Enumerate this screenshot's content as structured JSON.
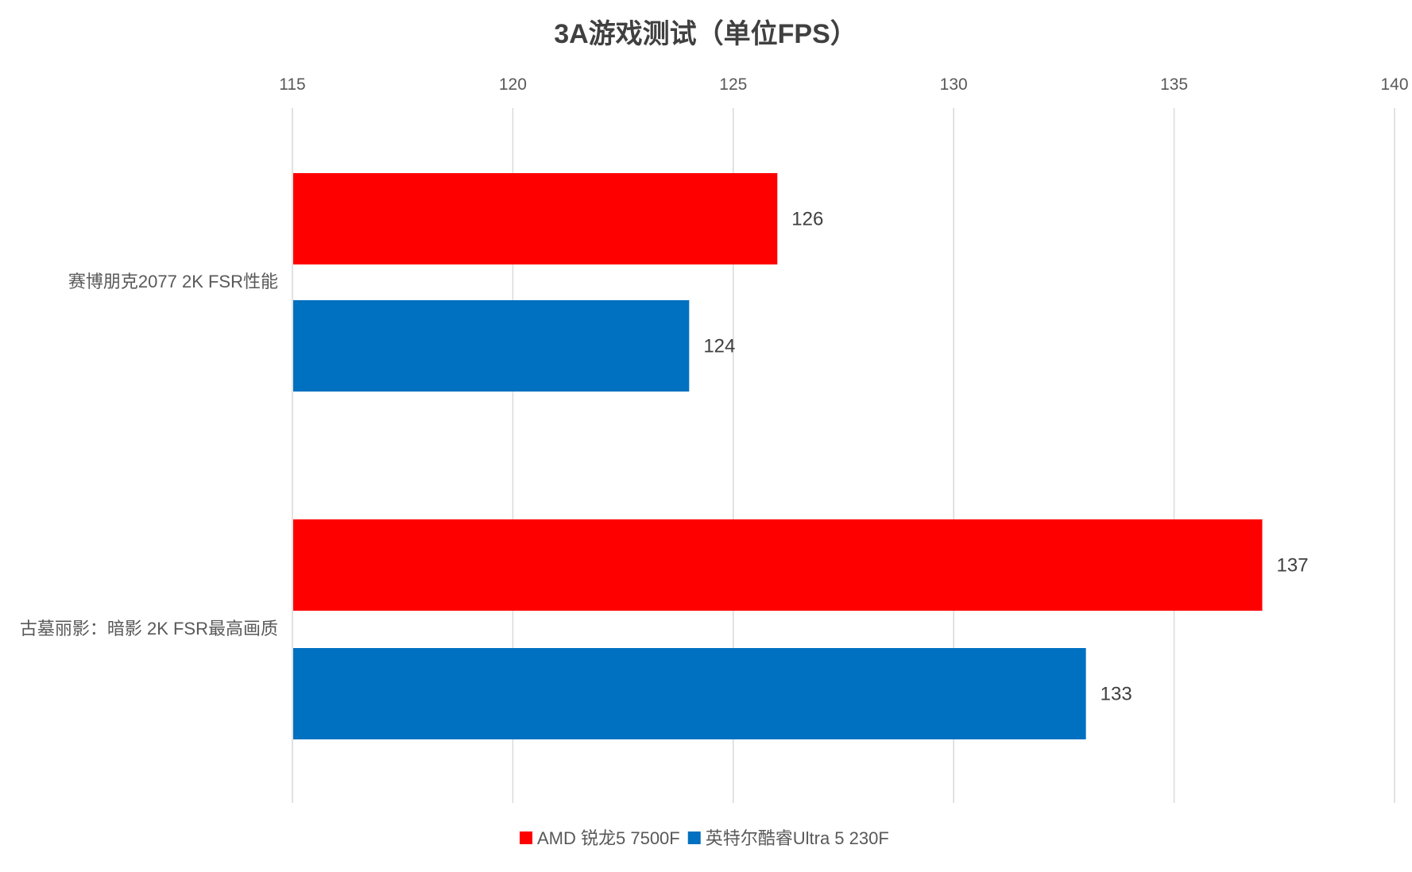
{
  "chart_data": {
    "type": "bar",
    "orientation": "horizontal",
    "title": "3A游戏测试（单位FPS）",
    "categories": [
      "赛博朋克2077 2K FSR性能",
      "古墓丽影：暗影 2K FSR最高画质"
    ],
    "series": [
      {
        "name": "AMD 锐龙5 7500F",
        "color": "#FF0000",
        "values": [
          126,
          137
        ]
      },
      {
        "name": "英特尔酷睿Ultra 5 230F",
        "color": "#0070C0",
        "values": [
          124,
          133
        ]
      }
    ],
    "xlim": [
      115,
      140
    ],
    "xticks": [
      115,
      120,
      125,
      130,
      135,
      140
    ],
    "xaxis_position": "top",
    "grid": true,
    "data_labels": true,
    "legend": "bottom"
  }
}
